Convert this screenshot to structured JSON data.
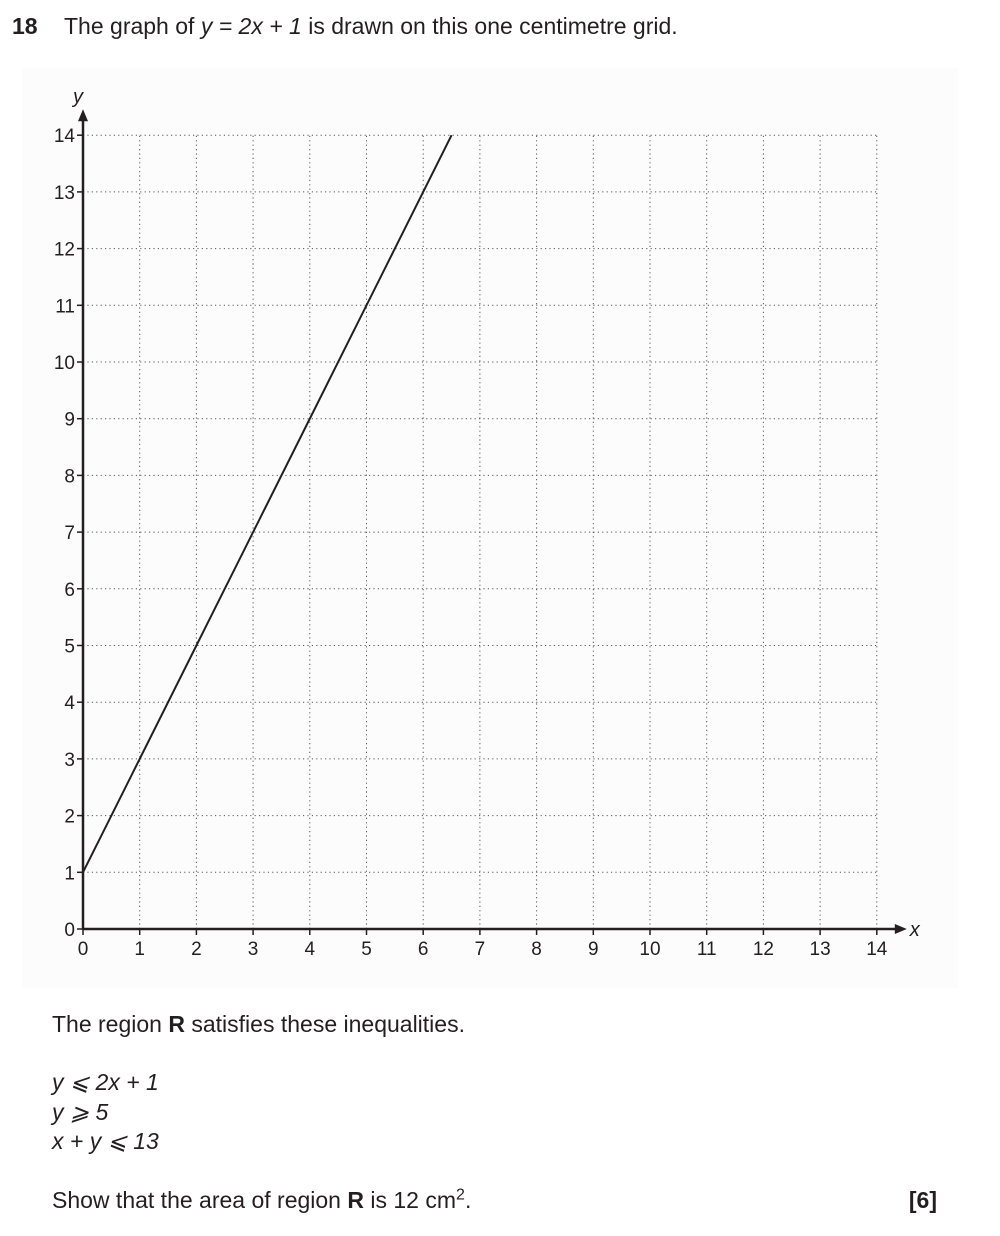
{
  "question": {
    "number": "18",
    "text_before": "The graph of ",
    "equation": "y = 2x + 1",
    "text_after": " is drawn on this one centimetre grid."
  },
  "chart_data": {
    "type": "line",
    "xlabel": "x",
    "ylabel": "y",
    "xlim": [
      0,
      14
    ],
    "ylim": [
      0,
      14
    ],
    "x_ticks": [
      0,
      1,
      2,
      3,
      4,
      5,
      6,
      7,
      8,
      9,
      10,
      11,
      12,
      13,
      14
    ],
    "y_ticks": [
      0,
      1,
      2,
      3,
      4,
      5,
      6,
      7,
      8,
      9,
      10,
      11,
      12,
      13,
      14
    ],
    "grid": "dotted",
    "series": [
      {
        "x": [
          0,
          6.5
        ],
        "y": [
          1,
          14
        ]
      }
    ]
  },
  "region": {
    "intro_before": "The region ",
    "name": "R",
    "intro_after": " satisfies these inequalities.",
    "inequalities": [
      "y ⩽ 2x + 1",
      "y ⩾ 5",
      "x + y ⩽ 13"
    ],
    "show_before": "Show that the area of region ",
    "show_middle": " is 12 cm",
    "show_power": "2",
    "show_end": "."
  },
  "marks": "[6]"
}
